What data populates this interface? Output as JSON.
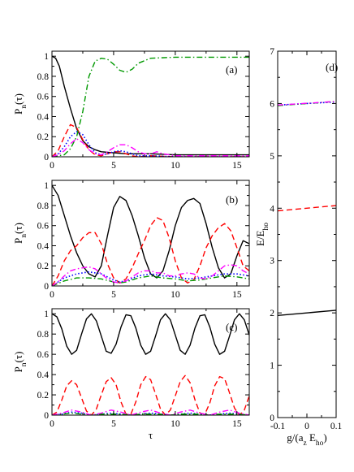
{
  "colors": {
    "solid_black": "#000000",
    "dashed_red": "#ff0000",
    "dotted_blue": "#0000ff",
    "dashdot_green": "#009900",
    "dashdot_magenta": "#ff00ff"
  },
  "chart_data": [
    {
      "type": "line",
      "panel_label": "(a)",
      "ylabel": "P_n(τ)",
      "xlabel": "",
      "xlim": [
        0,
        16
      ],
      "ylim": [
        0,
        1.05
      ],
      "xticks": [
        0,
        5,
        10,
        15
      ],
      "xtick_labels": [
        "0",
        "5",
        "10",
        "15"
      ],
      "yticks": [
        0,
        0.2,
        0.4,
        0.6,
        0.8,
        1
      ],
      "ytick_labels": [
        "0",
        "0.2",
        "0.4",
        "0.6",
        "0.8",
        "1"
      ],
      "series": [
        {
          "style": "solid",
          "color": "#000000",
          "x": [
            0,
            0.3,
            0.6,
            1,
            1.5,
            2,
            2.5,
            3,
            3.5,
            4,
            5,
            6,
            8,
            10,
            12,
            14,
            16
          ],
          "y": [
            1,
            0.98,
            0.9,
            0.7,
            0.48,
            0.28,
            0.16,
            0.1,
            0.07,
            0.05,
            0.04,
            0.03,
            0.03,
            0.02,
            0.02,
            0.02,
            0.02
          ]
        },
        {
          "style": "dashed",
          "color": "#ff0000",
          "x": [
            0,
            0.5,
            1,
            1.5,
            2,
            2.5,
            3,
            3.5,
            4,
            4.5,
            5,
            5.5,
            6,
            6.5,
            7,
            8,
            10,
            12,
            14,
            16
          ],
          "y": [
            0,
            0.06,
            0.2,
            0.32,
            0.29,
            0.17,
            0.07,
            0.02,
            0.01,
            0.03,
            0.05,
            0.05,
            0.03,
            0.01,
            0,
            0.01,
            0,
            0,
            0,
            0
          ]
        },
        {
          "style": "dotted",
          "color": "#0000ff",
          "x": [
            0,
            0.5,
            1,
            1.5,
            2,
            2.5,
            3,
            3.5,
            4,
            4.5,
            5,
            5.5,
            6,
            6.5,
            7,
            8,
            10,
            12,
            14,
            16
          ],
          "y": [
            0,
            0.03,
            0.1,
            0.2,
            0.25,
            0.22,
            0.12,
            0.04,
            0.02,
            0.03,
            0.05,
            0.06,
            0.05,
            0.03,
            0.01,
            0.01,
            0,
            0,
            0,
            0
          ]
        },
        {
          "style": "dashdot",
          "color": "#009900",
          "x": [
            0,
            1,
            1.5,
            2,
            2.5,
            3,
            3.5,
            4,
            4.5,
            5,
            5.5,
            6,
            6.5,
            7,
            8,
            10,
            12,
            14,
            16
          ],
          "y": [
            0,
            0.02,
            0.08,
            0.2,
            0.45,
            0.8,
            0.95,
            0.98,
            0.97,
            0.92,
            0.86,
            0.84,
            0.87,
            0.93,
            0.98,
            0.99,
            0.99,
            0.99,
            0.99
          ]
        },
        {
          "style": "dashdot",
          "color": "#ff00ff",
          "x": [
            0,
            0.5,
            1,
            1.5,
            2,
            2.5,
            3,
            3.5,
            4,
            4.5,
            5,
            5.5,
            6,
            6.5,
            7,
            7.5,
            8,
            8.5,
            9,
            10,
            12,
            14,
            16
          ],
          "y": [
            0,
            0.02,
            0.06,
            0.13,
            0.18,
            0.14,
            0.07,
            0.03,
            0.02,
            0.05,
            0.09,
            0.12,
            0.12,
            0.09,
            0.05,
            0.03,
            0.03,
            0.05,
            0.03,
            0.01,
            0.01,
            0.01,
            0.01
          ]
        }
      ]
    },
    {
      "type": "line",
      "panel_label": "(b)",
      "ylabel": "P_n(τ)",
      "xlabel": "",
      "xlim": [
        0,
        16
      ],
      "ylim": [
        0,
        1.05
      ],
      "xticks": [
        0,
        5,
        10,
        15
      ],
      "xtick_labels": [
        "0",
        "5",
        "10",
        "15"
      ],
      "yticks": [
        0,
        0.2,
        0.4,
        0.6,
        0.8,
        1
      ],
      "ytick_labels": [
        "0",
        "0.2",
        "0.4",
        "0.6",
        "0.8",
        "1"
      ],
      "series": [
        {
          "style": "solid",
          "color": "#000000",
          "x": [
            0,
            0.5,
            1,
            1.5,
            2,
            2.5,
            3,
            3.5,
            4,
            4.5,
            5,
            5.5,
            6,
            6.5,
            7,
            7.5,
            8,
            8.5,
            9,
            9.5,
            10,
            10.5,
            11,
            11.5,
            12,
            12.5,
            13,
            13.5,
            14,
            14.5,
            15,
            15.5,
            16
          ],
          "y": [
            1,
            0.9,
            0.7,
            0.5,
            0.33,
            0.2,
            0.12,
            0.09,
            0.2,
            0.5,
            0.78,
            0.89,
            0.85,
            0.7,
            0.5,
            0.28,
            0.12,
            0.08,
            0.15,
            0.35,
            0.6,
            0.78,
            0.85,
            0.87,
            0.82,
            0.62,
            0.38,
            0.18,
            0.08,
            0.12,
            0.3,
            0.45,
            0.42
          ]
        },
        {
          "style": "dashed",
          "color": "#ff0000",
          "x": [
            0,
            0.5,
            1,
            1.5,
            2,
            2.5,
            3,
            3.5,
            4,
            4.5,
            5,
            5.5,
            6,
            6.5,
            7,
            7.5,
            8,
            8.5,
            9,
            9.5,
            10,
            10.5,
            11,
            11.5,
            12,
            12.5,
            13,
            13.5,
            14,
            14.5,
            15,
            15.5,
            16
          ],
          "y": [
            0,
            0.1,
            0.25,
            0.35,
            0.4,
            0.48,
            0.53,
            0.53,
            0.42,
            0.22,
            0.08,
            0.03,
            0.07,
            0.18,
            0.32,
            0.45,
            0.6,
            0.68,
            0.65,
            0.48,
            0.25,
            0.08,
            0.03,
            0.06,
            0.2,
            0.38,
            0.5,
            0.58,
            0.62,
            0.55,
            0.38,
            0.2,
            0.15
          ]
        },
        {
          "style": "dotted",
          "color": "#0000ff",
          "x": [
            0,
            1,
            2,
            3,
            4,
            5,
            5.5,
            6,
            7,
            8,
            9,
            10,
            11,
            12,
            13,
            14,
            15,
            16
          ],
          "y": [
            0,
            0.08,
            0.12,
            0.14,
            0.12,
            0.06,
            0.04,
            0.05,
            0.1,
            0.12,
            0.1,
            0.09,
            0.07,
            0.08,
            0.1,
            0.12,
            0.12,
            0.1
          ]
        },
        {
          "style": "dashdot",
          "color": "#009900",
          "x": [
            0,
            1,
            2,
            3,
            4,
            5,
            5.5,
            6,
            7,
            8,
            9,
            10,
            11,
            12,
            13,
            14,
            15,
            16
          ],
          "y": [
            0,
            0.05,
            0.08,
            0.08,
            0.07,
            0.04,
            0.03,
            0.04,
            0.08,
            0.1,
            0.08,
            0.07,
            0.05,
            0.06,
            0.08,
            0.1,
            0.09,
            0.07
          ]
        },
        {
          "style": "dashdot",
          "color": "#ff00ff",
          "x": [
            0,
            0.5,
            1,
            1.5,
            2,
            2.5,
            3,
            3.5,
            4,
            4.5,
            5,
            5.5,
            6,
            6.5,
            7,
            7.5,
            8,
            8.5,
            9,
            9.5,
            10,
            10.5,
            11,
            11.5,
            12,
            12.5,
            13,
            13.5,
            14,
            14.5,
            15,
            15.5,
            16
          ],
          "y": [
            0,
            0.04,
            0.1,
            0.15,
            0.17,
            0.18,
            0.19,
            0.17,
            0.12,
            0.07,
            0.04,
            0.03,
            0.05,
            0.09,
            0.13,
            0.15,
            0.15,
            0.13,
            0.13,
            0.1,
            0.1,
            0.12,
            0.13,
            0.12,
            0.08,
            0.07,
            0.1,
            0.15,
            0.2,
            0.21,
            0.2,
            0.15,
            0.12
          ]
        }
      ]
    },
    {
      "type": "line",
      "panel_label": "(c)",
      "ylabel": "P_n(τ)",
      "xlabel": "τ",
      "xlim": [
        0,
        16
      ],
      "ylim": [
        0,
        1.05
      ],
      "xticks": [
        0,
        5,
        10,
        15
      ],
      "xtick_labels": [
        "0",
        "5",
        "10",
        "15"
      ],
      "yticks": [
        0,
        0.2,
        0.4,
        0.6,
        0.8,
        1
      ],
      "ytick_labels": [
        "0",
        "0.2",
        "0.4",
        "0.6",
        "0.8",
        "1"
      ],
      "series": [
        {
          "style": "solid",
          "color": "#000000",
          "x": [
            0,
            0.4,
            0.8,
            1.2,
            1.6,
            2,
            2.4,
            2.8,
            3.2,
            3.6,
            4,
            4.4,
            4.8,
            5.2,
            5.6,
            6,
            6.4,
            6.8,
            7.2,
            7.6,
            8,
            8.4,
            8.8,
            9.2,
            9.6,
            10,
            10.4,
            10.8,
            11.2,
            11.6,
            12,
            12.4,
            12.8,
            13.2,
            13.6,
            14,
            14.4,
            14.8,
            15.2,
            15.6,
            16
          ],
          "y": [
            1,
            0.97,
            0.85,
            0.68,
            0.6,
            0.64,
            0.8,
            0.95,
            1,
            0.93,
            0.78,
            0.63,
            0.61,
            0.7,
            0.87,
            0.99,
            0.98,
            0.86,
            0.69,
            0.6,
            0.63,
            0.78,
            0.94,
            1,
            0.94,
            0.79,
            0.64,
            0.6,
            0.69,
            0.86,
            0.98,
            0.99,
            0.87,
            0.7,
            0.6,
            0.63,
            0.78,
            0.94,
            1,
            0.94,
            0.79
          ]
        },
        {
          "style": "dashed",
          "color": "#ff0000",
          "x": [
            0,
            0.4,
            0.8,
            1.2,
            1.6,
            2,
            2.4,
            2.8,
            3.2,
            3.6,
            4,
            4.4,
            4.8,
            5.2,
            5.6,
            6,
            6.4,
            6.8,
            7.2,
            7.6,
            8,
            8.4,
            8.8,
            9.2,
            9.6,
            10,
            10.4,
            10.8,
            11.2,
            11.6,
            12,
            12.4,
            12.8,
            13.2,
            13.6,
            14,
            14.4,
            14.8,
            15.2,
            15.6,
            16
          ],
          "y": [
            0,
            0.03,
            0.15,
            0.29,
            0.34,
            0.3,
            0.17,
            0.04,
            0,
            0.06,
            0.2,
            0.33,
            0.37,
            0.3,
            0.13,
            0.01,
            0.01,
            0.13,
            0.3,
            0.38,
            0.35,
            0.21,
            0.06,
            0,
            0.05,
            0.19,
            0.33,
            0.39,
            0.32,
            0.15,
            0.02,
            0.01,
            0.12,
            0.29,
            0.38,
            0.36,
            0.22,
            0.07,
            0,
            0.05,
            0.19
          ]
        },
        {
          "style": "dotted",
          "color": "#0000ff",
          "x": [
            0,
            0.8,
            1.6,
            2.4,
            3.2,
            4,
            4.8,
            5.6,
            6.4,
            7.2,
            8,
            8.8,
            9.6,
            10.4,
            11.2,
            12,
            12.8,
            13.6,
            14.4,
            15.2,
            16
          ],
          "y": [
            0,
            0.01,
            0.03,
            0.02,
            0,
            0.01,
            0.02,
            0.01,
            0,
            0.01,
            0.02,
            0.01,
            0,
            0.01,
            0.02,
            0.01,
            0,
            0.01,
            0.02,
            0.01,
            0
          ]
        },
        {
          "style": "dashdot",
          "color": "#009900",
          "x": [
            0,
            0.8,
            1.6,
            2.4,
            3.2,
            4,
            4.8,
            5.6,
            6.4,
            7.2,
            8,
            8.8,
            9.6,
            10.4,
            11.2,
            12,
            12.8,
            13.6,
            14.4,
            15.2,
            16
          ],
          "y": [
            0,
            0.01,
            0.02,
            0.01,
            0,
            0.01,
            0.01,
            0.01,
            0,
            0.01,
            0.01,
            0.01,
            0,
            0.01,
            0.01,
            0.01,
            0,
            0.01,
            0.01,
            0.01,
            0
          ]
        },
        {
          "style": "dashdot",
          "color": "#ff00ff",
          "x": [
            0,
            0.8,
            1.6,
            2.4,
            3.2,
            4,
            4.8,
            5.6,
            6.4,
            7.2,
            8,
            8.8,
            9.6,
            10.4,
            11.2,
            12,
            12.8,
            13.6,
            14.4,
            15.2,
            16
          ],
          "y": [
            0,
            0.02,
            0.05,
            0.03,
            0,
            0.02,
            0.05,
            0.03,
            0,
            0.03,
            0.05,
            0.02,
            0,
            0.03,
            0.05,
            0.02,
            0,
            0.03,
            0.05,
            0.02,
            0
          ]
        }
      ]
    },
    {
      "type": "line",
      "panel_label": "(d)",
      "ylabel": "E/E_ho",
      "xlabel": "g/(a_z E_ho)",
      "xlim": [
        -0.1,
        0.1
      ],
      "ylim": [
        0,
        7
      ],
      "xticks": [
        -0.1,
        0,
        0.1
      ],
      "xtick_labels": [
        "-0.1",
        "0",
        "0.1"
      ],
      "yticks": [
        0,
        1,
        2,
        3,
        4,
        5,
        6,
        7
      ],
      "ytick_labels": [
        "0",
        "1",
        "2",
        "3",
        "4",
        "5",
        "6",
        "7"
      ],
      "series": [
        {
          "style": "solid",
          "color": "#000000",
          "x": [
            -0.1,
            0.1
          ],
          "y": [
            1.95,
            2.05
          ]
        },
        {
          "style": "dashed",
          "color": "#ff0000",
          "x": [
            -0.1,
            0.1
          ],
          "y": [
            3.95,
            4.05
          ]
        },
        {
          "style": "dotted",
          "color": "#0000ff",
          "x": [
            -0.1,
            0.1
          ],
          "y": [
            5.97,
            6.03
          ]
        },
        {
          "style": "dashdot",
          "color": "#009900",
          "x": [
            -0.1,
            0.1
          ],
          "y": [
            5.96,
            6.04
          ]
        },
        {
          "style": "dashdot",
          "color": "#ff00ff",
          "x": [
            -0.1,
            0.1
          ],
          "y": [
            5.97,
            6.04
          ]
        }
      ]
    }
  ]
}
